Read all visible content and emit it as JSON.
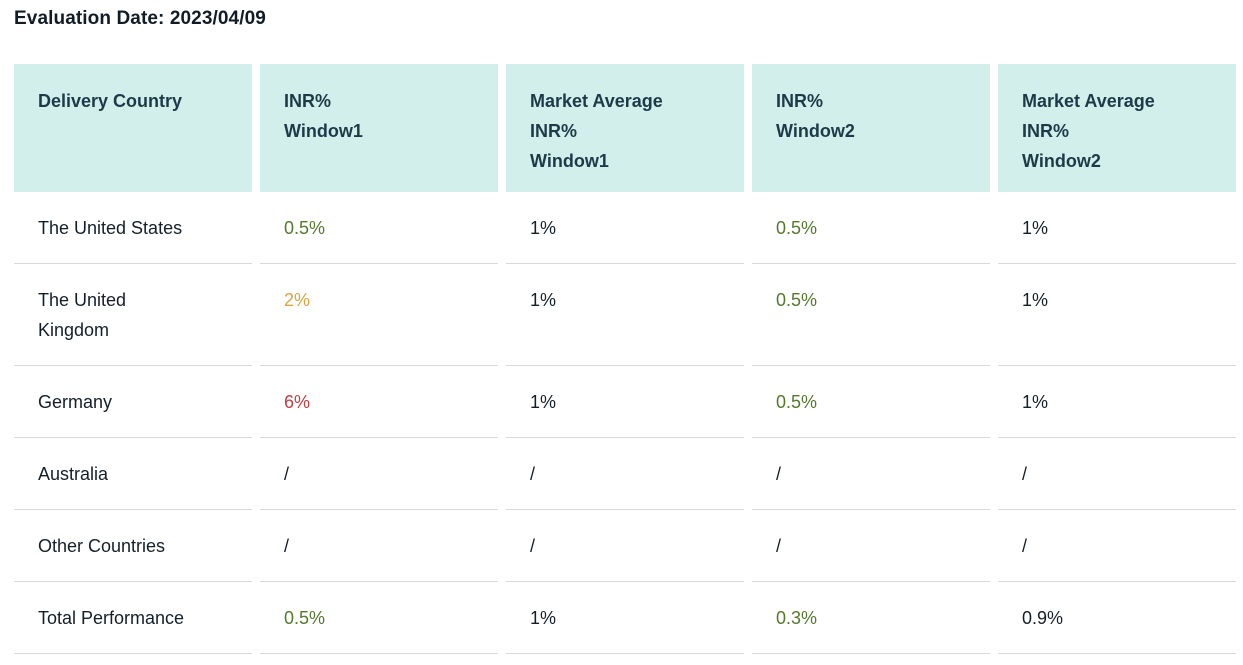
{
  "page": {
    "title": "Evaluation Date: 2023/04/09"
  },
  "table": {
    "headers": [
      "Delivery Country",
      "INR%\nWindow1",
      "Market Average\nINR%\nWindow1",
      "INR%\nWindow2",
      "Market Average\nINR%\nWindow2"
    ],
    "rows": [
      {
        "country": "The United States",
        "cells": [
          {
            "value": "0.5%",
            "tone": "green"
          },
          {
            "value": "1%",
            "tone": "default"
          },
          {
            "value": "0.5%",
            "tone": "green"
          },
          {
            "value": "1%",
            "tone": "default"
          }
        ]
      },
      {
        "country": "The United\nKingdom",
        "cells": [
          {
            "value": "2%",
            "tone": "orange"
          },
          {
            "value": "1%",
            "tone": "default"
          },
          {
            "value": "0.5%",
            "tone": "green"
          },
          {
            "value": "1%",
            "tone": "default"
          }
        ]
      },
      {
        "country": "Germany",
        "cells": [
          {
            "value": "6%",
            "tone": "red"
          },
          {
            "value": "1%",
            "tone": "default"
          },
          {
            "value": "0.5%",
            "tone": "green"
          },
          {
            "value": "1%",
            "tone": "default"
          }
        ]
      },
      {
        "country": "Australia",
        "cells": [
          {
            "value": "/",
            "tone": "default"
          },
          {
            "value": "/",
            "tone": "default"
          },
          {
            "value": "/",
            "tone": "default"
          },
          {
            "value": "/",
            "tone": "default"
          }
        ]
      },
      {
        "country": "Other Countries",
        "cells": [
          {
            "value": "/",
            "tone": "default"
          },
          {
            "value": "/",
            "tone": "default"
          },
          {
            "value": "/",
            "tone": "default"
          },
          {
            "value": "/",
            "tone": "default"
          }
        ]
      },
      {
        "country": "Total Performance",
        "cells": [
          {
            "value": "0.5%",
            "tone": "green"
          },
          {
            "value": "1%",
            "tone": "default"
          },
          {
            "value": "0.3%",
            "tone": "green"
          },
          {
            "value": "0.9%",
            "tone": "default"
          }
        ]
      }
    ]
  },
  "colors": {
    "green": "#55792c",
    "orange": "#dda33f",
    "red": "#c73b3d",
    "default": "#141f29",
    "header_bg": "#d2efec",
    "header_text": "#1e3a48",
    "divider": "#d9d9d9"
  }
}
